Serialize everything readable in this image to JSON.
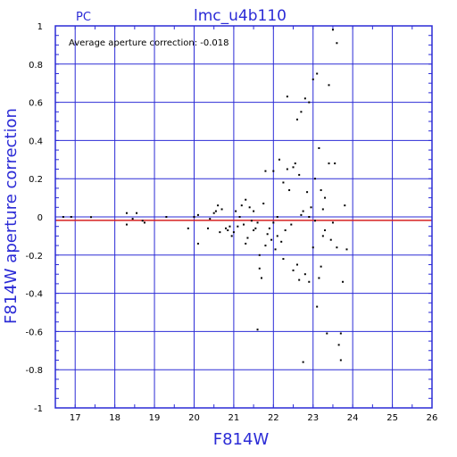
{
  "colors": {
    "frame": "#2b2bd6",
    "grid": "#2b2bd6",
    "zero_line": "#d62020",
    "points": "#000000"
  },
  "chart_data": {
    "type": "scatter",
    "title": "lmc_u4b110",
    "corner_label": "PC",
    "annotation": "Average aperture correction: -0.018",
    "xlabel": "F814W",
    "ylabel": "F814W aperture correction",
    "xlim": [
      16.5,
      26
    ],
    "ylim": [
      -1,
      1
    ],
    "xticks": [
      17,
      18,
      19,
      20,
      21,
      22,
      23,
      24,
      25,
      26
    ],
    "yticks": [
      -1,
      -0.8,
      -0.6,
      -0.4,
      -0.2,
      0,
      0.2,
      0.4,
      0.6,
      0.8,
      1
    ],
    "ytick_labels": [
      "-1",
      "-0.8",
      "-0.6",
      "-0.4",
      "-0.2",
      "0",
      "0.2",
      "0.4",
      "0.6",
      "0.8",
      "1"
    ],
    "grid": true,
    "reference_line": {
      "y": -0.018,
      "color": "#d62020"
    },
    "series": [
      {
        "points": [
          [
            16.7,
            0.0
          ],
          [
            16.9,
            0.0
          ],
          [
            17.4,
            -0.001
          ],
          [
            18.3,
            0.02
          ],
          [
            18.3,
            -0.04
          ],
          [
            18.45,
            -0.01
          ],
          [
            18.55,
            0.02
          ],
          [
            18.7,
            -0.02
          ],
          [
            18.75,
            -0.03
          ],
          [
            19.3,
            0.0
          ],
          [
            19.85,
            -0.06
          ],
          [
            20.0,
            0.0
          ],
          [
            20.1,
            -0.14
          ],
          [
            20.1,
            0.01
          ],
          [
            20.35,
            -0.06
          ],
          [
            20.4,
            -0.01
          ],
          [
            20.5,
            0.02
          ],
          [
            20.55,
            0.03
          ],
          [
            20.6,
            0.06
          ],
          [
            20.65,
            -0.08
          ],
          [
            20.7,
            0.04
          ],
          [
            20.8,
            -0.06
          ],
          [
            20.85,
            -0.07
          ],
          [
            20.9,
            -0.05
          ],
          [
            20.95,
            -0.1
          ],
          [
            21.0,
            -0.08
          ],
          [
            21.05,
            0.03
          ],
          [
            21.1,
            -0.05
          ],
          [
            21.15,
            0.0
          ],
          [
            21.2,
            0.06
          ],
          [
            21.25,
            -0.04
          ],
          [
            21.3,
            0.09
          ],
          [
            21.35,
            -0.11
          ],
          [
            21.4,
            0.05
          ],
          [
            21.45,
            -0.02
          ],
          [
            21.5,
            0.03
          ],
          [
            21.55,
            -0.06
          ],
          [
            21.6,
            -0.59
          ],
          [
            21.6,
            -0.03
          ],
          [
            21.65,
            -0.2
          ],
          [
            21.65,
            -0.27
          ],
          [
            21.7,
            -0.32
          ],
          [
            21.75,
            0.07
          ],
          [
            21.8,
            -0.15
          ],
          [
            21.8,
            0.24
          ],
          [
            21.85,
            -0.09
          ],
          [
            21.9,
            -0.06
          ],
          [
            21.95,
            -0.12
          ],
          [
            22.0,
            0.24
          ],
          [
            22.0,
            -0.03
          ],
          [
            22.05,
            -0.17
          ],
          [
            22.1,
            0.0
          ],
          [
            22.15,
            0.3
          ],
          [
            22.2,
            -0.13
          ],
          [
            22.25,
            0.18
          ],
          [
            22.25,
            -0.22
          ],
          [
            22.3,
            -0.07
          ],
          [
            22.35,
            0.63
          ],
          [
            22.35,
            0.25
          ],
          [
            22.4,
            0.14
          ],
          [
            22.45,
            -0.04
          ],
          [
            22.5,
            0.26
          ],
          [
            22.5,
            -0.28
          ],
          [
            22.55,
            0.28
          ],
          [
            22.6,
            0.51
          ],
          [
            22.6,
            -0.25
          ],
          [
            22.65,
            0.22
          ],
          [
            22.65,
            -0.33
          ],
          [
            22.7,
            0.55
          ],
          [
            22.7,
            0.01
          ],
          [
            22.75,
            -0.76
          ],
          [
            22.75,
            0.03
          ],
          [
            22.8,
            0.62
          ],
          [
            22.8,
            -0.3
          ],
          [
            22.85,
            0.13
          ],
          [
            22.9,
            0.6
          ],
          [
            22.9,
            -0.34
          ],
          [
            22.95,
            0.05
          ],
          [
            23.0,
            0.72
          ],
          [
            23.0,
            -0.16
          ],
          [
            23.05,
            0.2
          ],
          [
            23.1,
            0.75
          ],
          [
            23.1,
            -0.47
          ],
          [
            23.15,
            0.36
          ],
          [
            23.15,
            -0.32
          ],
          [
            23.2,
            0.14
          ],
          [
            23.25,
            0.04
          ],
          [
            23.3,
            0.1
          ],
          [
            23.35,
            -0.61
          ],
          [
            23.4,
            0.69
          ],
          [
            23.4,
            0.28
          ],
          [
            23.45,
            -0.12
          ],
          [
            23.5,
            0.98
          ],
          [
            23.5,
            -0.03
          ],
          [
            23.55,
            0.28
          ],
          [
            23.6,
            0.91
          ],
          [
            23.6,
            -0.16
          ],
          [
            23.65,
            -0.67
          ],
          [
            23.7,
            -0.75
          ],
          [
            23.7,
            -0.61
          ],
          [
            23.75,
            -0.34
          ],
          [
            23.8,
            0.06
          ],
          [
            23.85,
            -0.17
          ],
          [
            23.2,
            -0.26
          ],
          [
            23.05,
            -0.02
          ],
          [
            22.9,
            0.0
          ],
          [
            23.3,
            -0.07
          ],
          [
            23.25,
            -0.1
          ],
          [
            21.5,
            -0.07
          ],
          [
            21.3,
            -0.14
          ],
          [
            22.1,
            -0.1
          ]
        ]
      }
    ]
  }
}
